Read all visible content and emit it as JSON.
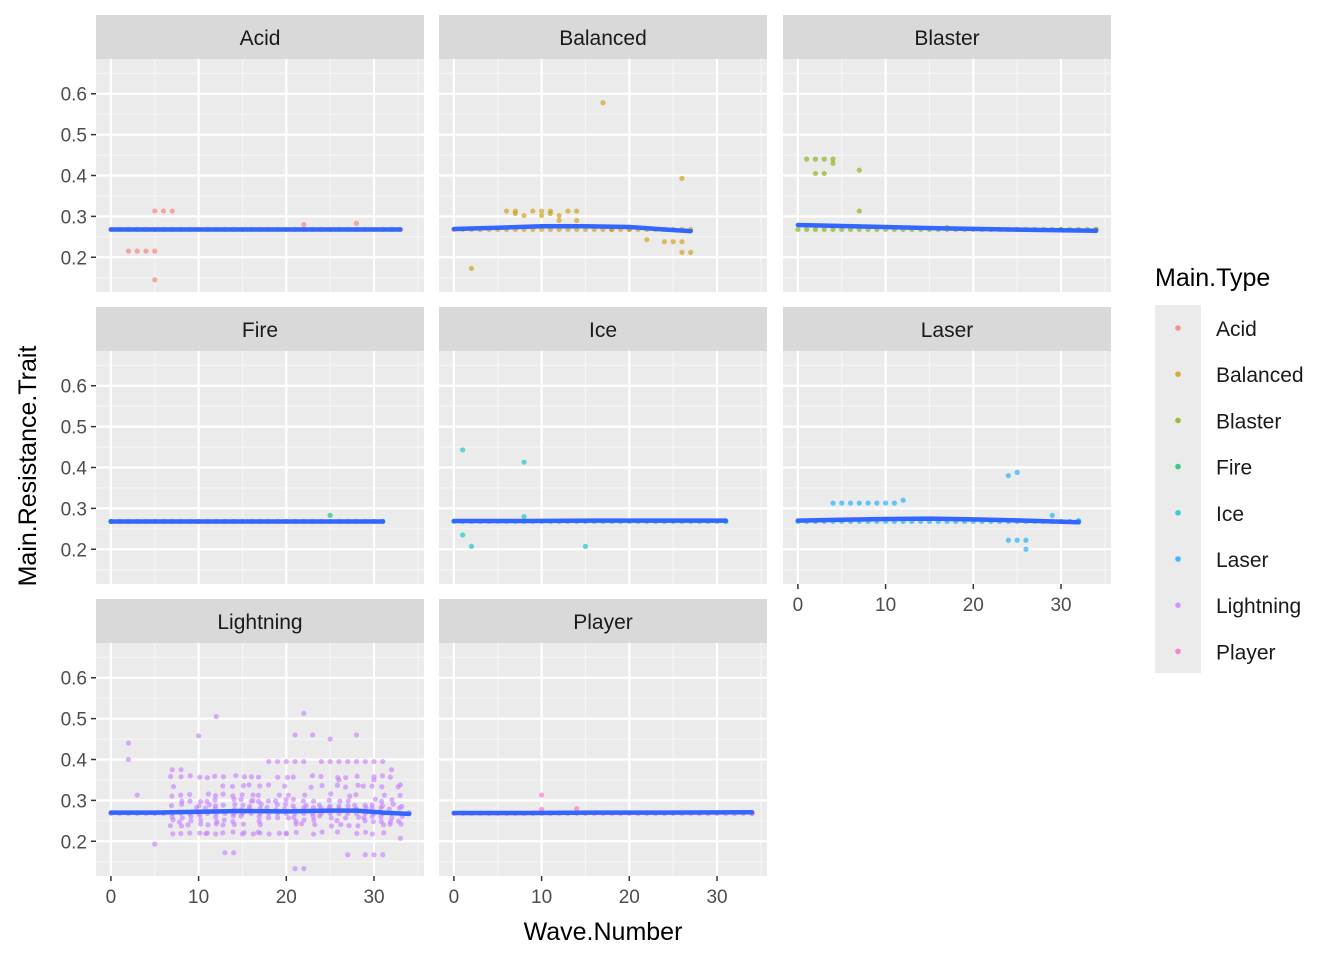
{
  "chart_data": {
    "type": "scatter",
    "facet_by": "Main.Type",
    "xlabel": "Wave.Number",
    "ylabel": "Main.Resistance.Trait",
    "xlim": [
      -1.7,
      35.7
    ],
    "ylim": [
      0.115,
      0.685
    ],
    "x_ticks": [
      0,
      10,
      20,
      30
    ],
    "y_ticks": [
      0.2,
      0.3,
      0.4,
      0.5,
      0.6
    ],
    "x_tick_labels": [
      "0",
      "10",
      "20",
      "30"
    ],
    "y_tick_labels": [
      "0.2",
      "0.3",
      "0.4",
      "0.5",
      "0.6"
    ],
    "legend": {
      "title": "Main.Type",
      "position": "right",
      "entries": [
        "Acid",
        "Balanced",
        "Blaster",
        "Fire",
        "Ice",
        "Laser",
        "Lightning",
        "Player"
      ]
    },
    "colors": {
      "Acid": "#F8766D",
      "Balanced": "#CD9600",
      "Blaster": "#7CAE00",
      "Fire": "#00BE67",
      "Ice": "#00BFC4",
      "Laser": "#00A9FF",
      "Lightning": "#C77CFF",
      "Player": "#FF61CC",
      "smooth": "#3366FF"
    },
    "panels": [
      {
        "name": "Acid",
        "points": [
          [
            5,
            0.313
          ],
          [
            6,
            0.313
          ],
          [
            7,
            0.313
          ],
          [
            2,
            0.215
          ],
          [
            3,
            0.215
          ],
          [
            4,
            0.215
          ],
          [
            5,
            0.215
          ],
          [
            5,
            0.145
          ],
          [
            22,
            0.28
          ],
          [
            28,
            0.283
          ],
          [
            33,
            0.268
          ]
        ],
        "smooth": [
          [
            0,
            0.268
          ],
          [
            8,
            0.268
          ],
          [
            16,
            0.268
          ],
          [
            24,
            0.268
          ],
          [
            33,
            0.268
          ]
        ]
      },
      {
        "name": "Balanced",
        "points": [
          [
            6,
            0.313
          ],
          [
            7,
            0.313
          ],
          [
            9,
            0.313
          ],
          [
            10,
            0.313
          ],
          [
            11,
            0.313
          ],
          [
            13,
            0.313
          ],
          [
            14,
            0.313
          ],
          [
            7,
            0.307
          ],
          [
            8,
            0.302
          ],
          [
            10,
            0.302
          ],
          [
            11,
            0.307
          ],
          [
            12,
            0.302
          ],
          [
            12,
            0.29
          ],
          [
            14,
            0.29
          ],
          [
            17,
            0.578
          ],
          [
            26,
            0.393
          ],
          [
            22,
            0.243
          ],
          [
            24,
            0.238
          ],
          [
            25,
            0.238
          ],
          [
            26,
            0.238
          ],
          [
            26,
            0.212
          ],
          [
            27,
            0.212
          ],
          [
            2,
            0.173
          ],
          [
            18,
            0.268
          ],
          [
            20,
            0.268
          ]
        ],
        "smooth": [
          [
            0,
            0.269
          ],
          [
            5,
            0.272
          ],
          [
            10,
            0.276
          ],
          [
            15,
            0.276
          ],
          [
            20,
            0.274
          ],
          [
            24,
            0.268
          ],
          [
            27,
            0.264
          ]
        ]
      },
      {
        "name": "Blaster",
        "points": [
          [
            1,
            0.44
          ],
          [
            2,
            0.44
          ],
          [
            3,
            0.44
          ],
          [
            4,
            0.44
          ],
          [
            4,
            0.43
          ],
          [
            2,
            0.405
          ],
          [
            3,
            0.405
          ],
          [
            7,
            0.413
          ],
          [
            7,
            0.313
          ],
          [
            17,
            0.273
          ],
          [
            25,
            0.268
          ],
          [
            30,
            0.268
          ],
          [
            34,
            0.268
          ]
        ],
        "smooth": [
          [
            0,
            0.279
          ],
          [
            8,
            0.275
          ],
          [
            16,
            0.271
          ],
          [
            24,
            0.268
          ],
          [
            34,
            0.265
          ]
        ]
      },
      {
        "name": "Fire",
        "points": [
          [
            25,
            0.283
          ],
          [
            31,
            0.268
          ],
          [
            0,
            0.268
          ]
        ],
        "smooth": [
          [
            0,
            0.268
          ],
          [
            10,
            0.268
          ],
          [
            20,
            0.268
          ],
          [
            31,
            0.268
          ]
        ]
      },
      {
        "name": "Ice",
        "points": [
          [
            1,
            0.443
          ],
          [
            8,
            0.413
          ],
          [
            8,
            0.28
          ],
          [
            1,
            0.235
          ],
          [
            2,
            0.207
          ],
          [
            15,
            0.207
          ],
          [
            31,
            0.268
          ]
        ],
        "smooth": [
          [
            0,
            0.269
          ],
          [
            8,
            0.269
          ],
          [
            16,
            0.27
          ],
          [
            24,
            0.27
          ],
          [
            31,
            0.27
          ]
        ]
      },
      {
        "name": "Laser",
        "points": [
          [
            4,
            0.313
          ],
          [
            5,
            0.313
          ],
          [
            6,
            0.313
          ],
          [
            7,
            0.313
          ],
          [
            8,
            0.313
          ],
          [
            9,
            0.313
          ],
          [
            10,
            0.313
          ],
          [
            11,
            0.313
          ],
          [
            12,
            0.32
          ],
          [
            24,
            0.38
          ],
          [
            25,
            0.388
          ],
          [
            24,
            0.222
          ],
          [
            25,
            0.222
          ],
          [
            26,
            0.222
          ],
          [
            26,
            0.2
          ],
          [
            29,
            0.283
          ],
          [
            32,
            0.27
          ]
        ],
        "smooth": [
          [
            0,
            0.27
          ],
          [
            5,
            0.272
          ],
          [
            10,
            0.274
          ],
          [
            15,
            0.275
          ],
          [
            20,
            0.273
          ],
          [
            26,
            0.27
          ],
          [
            32,
            0.266
          ]
        ]
      },
      {
        "name": "Lightning",
        "points": [
          [
            2,
            0.44
          ],
          [
            2,
            0.4
          ],
          [
            3,
            0.313
          ],
          [
            5,
            0.193
          ],
          [
            7,
            0.375
          ],
          [
            8,
            0.375
          ],
          [
            9,
            0.22
          ],
          [
            10,
            0.458
          ],
          [
            11,
            0.22
          ],
          [
            12,
            0.505
          ],
          [
            13,
            0.172
          ],
          [
            14,
            0.172
          ],
          [
            15,
            0.218
          ],
          [
            16,
            0.298
          ],
          [
            17,
            0.22
          ],
          [
            18,
            0.395
          ],
          [
            19,
            0.395
          ],
          [
            20,
            0.395
          ],
          [
            20,
            0.22
          ],
          [
            21,
            0.395
          ],
          [
            21,
            0.46
          ],
          [
            22,
            0.395
          ],
          [
            22,
            0.513
          ],
          [
            23,
            0.46
          ],
          [
            24,
            0.395
          ],
          [
            25,
            0.395
          ],
          [
            25,
            0.45
          ],
          [
            26,
            0.395
          ],
          [
            27,
            0.395
          ],
          [
            28,
            0.395
          ],
          [
            28,
            0.46
          ],
          [
            29,
            0.395
          ],
          [
            30,
            0.395
          ],
          [
            31,
            0.395
          ],
          [
            32,
            0.375
          ],
          [
            33,
            0.338
          ],
          [
            33,
            0.207
          ],
          [
            34,
            0.27
          ],
          [
            21,
            0.133
          ],
          [
            22,
            0.133
          ],
          [
            27,
            0.167
          ],
          [
            29,
            0.167
          ],
          [
            30,
            0.167
          ],
          [
            31,
            0.167
          ],
          [
            26,
            0.35
          ],
          [
            30,
            0.35
          ]
        ],
        "dense_band": {
          "x_range": [
            7,
            33
          ],
          "y_levels": [
            0.358,
            0.335,
            0.313,
            0.3,
            0.288,
            0.28,
            0.26,
            0.25,
            0.24,
            0.22
          ]
        },
        "smooth": [
          [
            0,
            0.27
          ],
          [
            5,
            0.27
          ],
          [
            10,
            0.272
          ],
          [
            15,
            0.274
          ],
          [
            20,
            0.273
          ],
          [
            25,
            0.275
          ],
          [
            28,
            0.275
          ],
          [
            31,
            0.27
          ],
          [
            34,
            0.267
          ]
        ]
      },
      {
        "name": "Player",
        "points": [
          [
            10,
            0.313
          ],
          [
            10,
            0.278
          ],
          [
            14,
            0.28
          ],
          [
            34,
            0.268
          ]
        ],
        "smooth": [
          [
            0,
            0.269
          ],
          [
            8,
            0.269
          ],
          [
            16,
            0.27
          ],
          [
            24,
            0.27
          ],
          [
            34,
            0.271
          ]
        ]
      }
    ]
  }
}
